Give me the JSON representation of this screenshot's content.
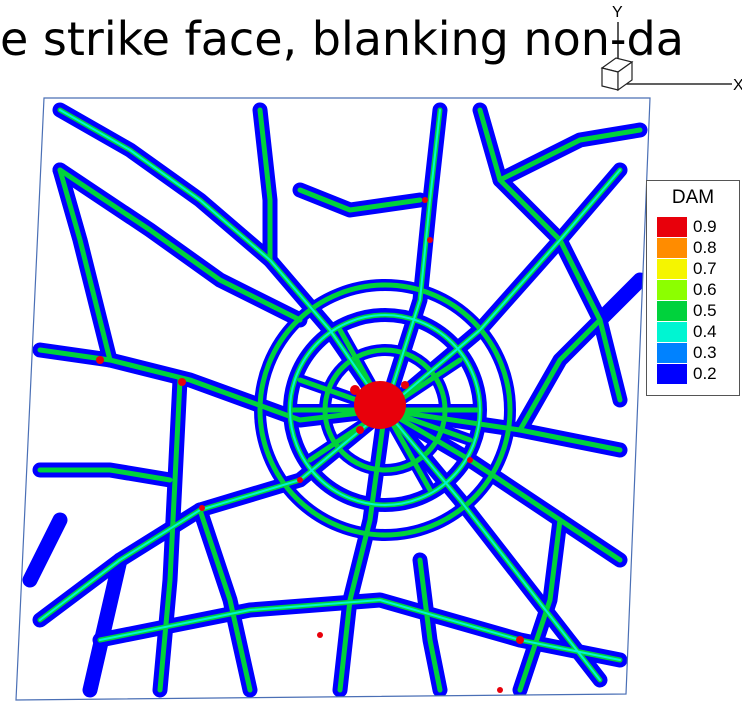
{
  "title": "e strike face, blanking non-da",
  "axes": {
    "y_label": "Y",
    "x_label": "X"
  },
  "legend": {
    "title": "DAM",
    "entries": [
      {
        "label": "0.9",
        "color": "#e8000b"
      },
      {
        "label": "0.8",
        "color": "#ff8c00"
      },
      {
        "label": "0.7",
        "color": "#f5f500"
      },
      {
        "label": "0.6",
        "color": "#8cff00"
      },
      {
        "label": "0.5",
        "color": "#00d23c"
      },
      {
        "label": "0.4",
        "color": "#00f5d2"
      },
      {
        "label": "0.3",
        "color": "#0082ff"
      },
      {
        "label": "0.2",
        "color": "#0000ff"
      }
    ]
  },
  "colors": {
    "background": "#ffffff",
    "frame": "#4a6fb5",
    "crack_outer": "#0000ff",
    "crack_mid": "#00d23c",
    "crack_core": "#00f5d2",
    "hotspot": "#e8000b"
  }
}
